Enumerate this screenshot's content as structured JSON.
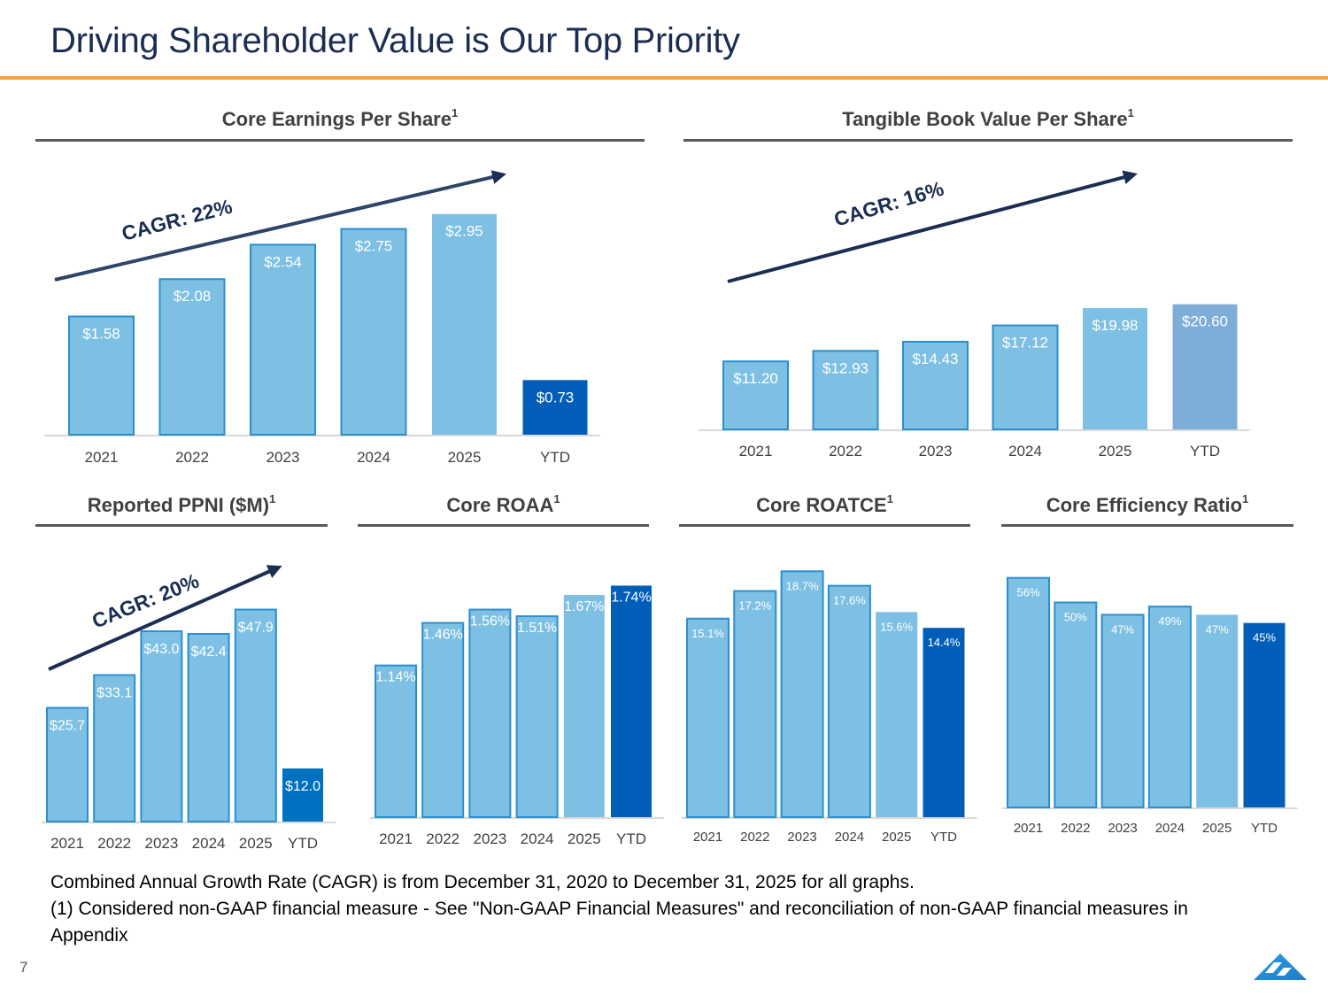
{
  "header": {
    "title": "Driving Shareholder Value is Our Top Priority",
    "accent_color": "#f6a33b"
  },
  "colors": {
    "bar": "#7dc0e3",
    "bar_border": "#2a8fcf",
    "ytd_bar": "#005eb8",
    "ytd_bar_tbv": "#7eaed8",
    "arrow": "#1b2d52",
    "axis_text": "#404040"
  },
  "chart_data": [
    {
      "id": "core-eps",
      "type": "bar",
      "title": "Core Earnings Per Share",
      "title_superscript": "1",
      "categories": [
        "2021",
        "2022",
        "2023",
        "2024",
        "2025",
        "YTD"
      ],
      "values": [
        1.58,
        2.08,
        2.54,
        2.75,
        2.95,
        0.73
      ],
      "data_labels": [
        "$1.58",
        "$2.08",
        "$2.54",
        "$2.75",
        "$2.95",
        "$0.73"
      ],
      "annotation": "CAGR: 22%",
      "xlabel": "",
      "ylabel": "",
      "grid": false
    },
    {
      "id": "tbvps",
      "type": "bar",
      "title": "Tangible Book Value Per Share",
      "title_superscript": "1",
      "categories": [
        "2021",
        "2022",
        "2023",
        "2024",
        "2025",
        "YTD"
      ],
      "values": [
        11.2,
        12.93,
        14.43,
        17.12,
        19.98,
        20.6
      ],
      "data_labels": [
        "$11.20",
        "$12.93",
        "$14.43",
        "$17.12",
        "$19.98",
        "$20.60"
      ],
      "annotation": "CAGR: 16%",
      "xlabel": "",
      "ylabel": "",
      "grid": false
    },
    {
      "id": "ppni",
      "type": "bar",
      "title": "Reported PPNI ($M)",
      "title_superscript": "1",
      "categories": [
        "2021",
        "2022",
        "2023",
        "2024",
        "2025",
        "YTD"
      ],
      "values": [
        25.7,
        33.1,
        43.0,
        42.4,
        47.9,
        12.0
      ],
      "data_labels": [
        "$25.7",
        "$33.1",
        "$43.0",
        "$42.4",
        "$47.9",
        "$12.0"
      ],
      "annotation": "CAGR: 20%",
      "xlabel": "",
      "ylabel": "",
      "grid": false
    },
    {
      "id": "roaa",
      "type": "bar",
      "title": "Core ROAA",
      "title_superscript": "1",
      "categories": [
        "2021",
        "2022",
        "2023",
        "2024",
        "2025",
        "YTD"
      ],
      "values": [
        1.14,
        1.46,
        1.56,
        1.51,
        1.67,
        1.74
      ],
      "data_labels": [
        "1.14%",
        "1.46%",
        "1.56%",
        "1.51%",
        "1.67%",
        "1.74%"
      ],
      "xlabel": "",
      "ylabel": "",
      "grid": false
    },
    {
      "id": "roatce",
      "type": "bar",
      "title": "Core ROATCE",
      "title_superscript": "1",
      "categories": [
        "2021",
        "2022",
        "2023",
        "2024",
        "2025",
        "YTD"
      ],
      "values": [
        15.1,
        17.2,
        18.7,
        17.6,
        15.6,
        14.4
      ],
      "data_labels": [
        "15.1%",
        "17.2%",
        "18.7%",
        "17.6%",
        "15.6%",
        "14.4%"
      ],
      "xlabel": "",
      "ylabel": "",
      "grid": false
    },
    {
      "id": "efficiency",
      "type": "bar",
      "title": "Core Efficiency Ratio",
      "title_superscript": "1",
      "categories": [
        "2021",
        "2022",
        "2023",
        "2024",
        "2025",
        "YTD"
      ],
      "values": [
        56,
        50,
        47,
        49,
        47,
        45
      ],
      "data_labels": [
        "56%",
        "50%",
        "47%",
        "49%",
        "47%",
        "45%"
      ],
      "xlabel": "",
      "ylabel": "",
      "grid": false
    }
  ],
  "footnotes": {
    "line1": "Combined Annual Growth Rate (CAGR) is from December 31, 2020 to December 31, 2025 for all graphs.",
    "line2": "(1) Considered non-GAAP financial measure - See \"Non-GAAP Financial Measures\" and reconciliation of non-GAAP financial measures in Appendix"
  },
  "footer": {
    "page_number": "7",
    "logo_icon": "mountain-logo-icon"
  }
}
